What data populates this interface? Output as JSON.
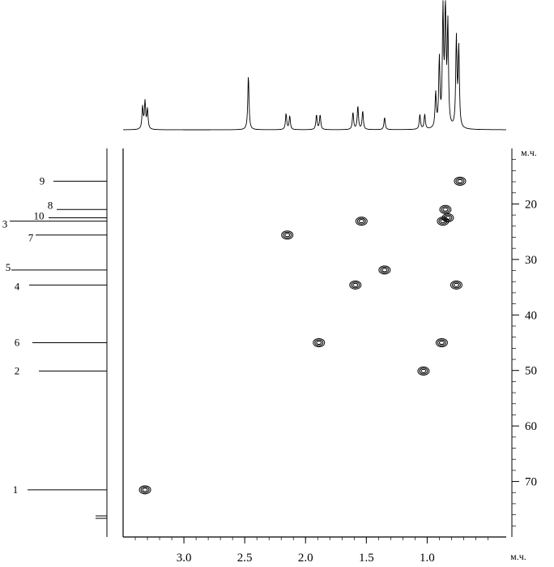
{
  "chart_data": {
    "type": "scatter",
    "subtype": "2D NMR HSQC contour map with projections",
    "x_axis": {
      "label": "м.ч.",
      "range": [
        3.5,
        0.35
      ],
      "reversed": true,
      "ticks": [
        3.0,
        2.5,
        2.0,
        1.5,
        1.0
      ],
      "tick_labels": [
        "3.0",
        "2.5",
        "2.0",
        "1.5",
        "1.0"
      ]
    },
    "y_axis": {
      "label": "м.ч.",
      "range": [
        10,
        80
      ],
      "reversed": true,
      "position": "right",
      "ticks": [
        20,
        30,
        40,
        50,
        60,
        70
      ],
      "tick_labels": [
        "20",
        "30",
        "40",
        "50",
        "60",
        "70"
      ]
    },
    "grid": false,
    "cross_peaks": [
      {
        "label": "1",
        "x": 3.32,
        "y": 71.5
      },
      {
        "label": "7",
        "x": 2.15,
        "y": 25.6
      },
      {
        "label": "6",
        "x": 1.89,
        "y": 45.0
      },
      {
        "label": "3",
        "x": 1.54,
        "y": 23.1
      },
      {
        "label": "4",
        "x": 1.59,
        "y": 34.6
      },
      {
        "label": "5",
        "x": 1.35,
        "y": 31.9
      },
      {
        "label": "2",
        "x": 1.03,
        "y": 50.1
      },
      {
        "label": "6",
        "x": 0.88,
        "y": 45.0
      },
      {
        "label": "3",
        "x": 0.87,
        "y": 23.1
      },
      {
        "label": "8",
        "x": 0.85,
        "y": 21.0
      },
      {
        "label": "10",
        "x": 0.83,
        "y": 22.5
      },
      {
        "label": "4",
        "x": 0.76,
        "y": 34.6
      },
      {
        "label": "9",
        "x": 0.73,
        "y": 15.9
      }
    ],
    "carbon_signals": [
      {
        "label": "9",
        "ppm": 15.9
      },
      {
        "label": "8",
        "ppm": 21.0
      },
      {
        "label": "10",
        "ppm": 22.5
      },
      {
        "label": "3",
        "ppm": 23.1
      },
      {
        "label": "7",
        "ppm": 25.6
      },
      {
        "label": "5",
        "ppm": 31.9
      },
      {
        "label": "4",
        "ppm": 34.6
      },
      {
        "label": "6",
        "ppm": 45.0
      },
      {
        "label": "2",
        "ppm": 50.1
      },
      {
        "label": "1",
        "ppm": 71.5
      }
    ],
    "proton_projection": [
      {
        "ppm": 3.34,
        "height": 0.18
      },
      {
        "ppm": 3.32,
        "height": 0.22
      },
      {
        "ppm": 3.3,
        "height": 0.16
      },
      {
        "ppm": 2.47,
        "height": 0.44
      },
      {
        "ppm": 2.16,
        "height": 0.13
      },
      {
        "ppm": 2.13,
        "height": 0.11
      },
      {
        "ppm": 1.91,
        "height": 0.12
      },
      {
        "ppm": 1.88,
        "height": 0.12
      },
      {
        "ppm": 1.61,
        "height": 0.14
      },
      {
        "ppm": 1.57,
        "height": 0.19
      },
      {
        "ppm": 1.53,
        "height": 0.15
      },
      {
        "ppm": 1.35,
        "height": 0.1
      },
      {
        "ppm": 1.06,
        "height": 0.12
      },
      {
        "ppm": 1.02,
        "height": 0.12
      },
      {
        "ppm": 0.93,
        "height": 0.28
      },
      {
        "ppm": 0.9,
        "height": 0.55
      },
      {
        "ppm": 0.87,
        "height": 0.93
      },
      {
        "ppm": 0.85,
        "height": 1.0
      },
      {
        "ppm": 0.83,
        "height": 0.82
      },
      {
        "ppm": 0.76,
        "height": 0.72
      },
      {
        "ppm": 0.74,
        "height": 0.64
      }
    ]
  }
}
